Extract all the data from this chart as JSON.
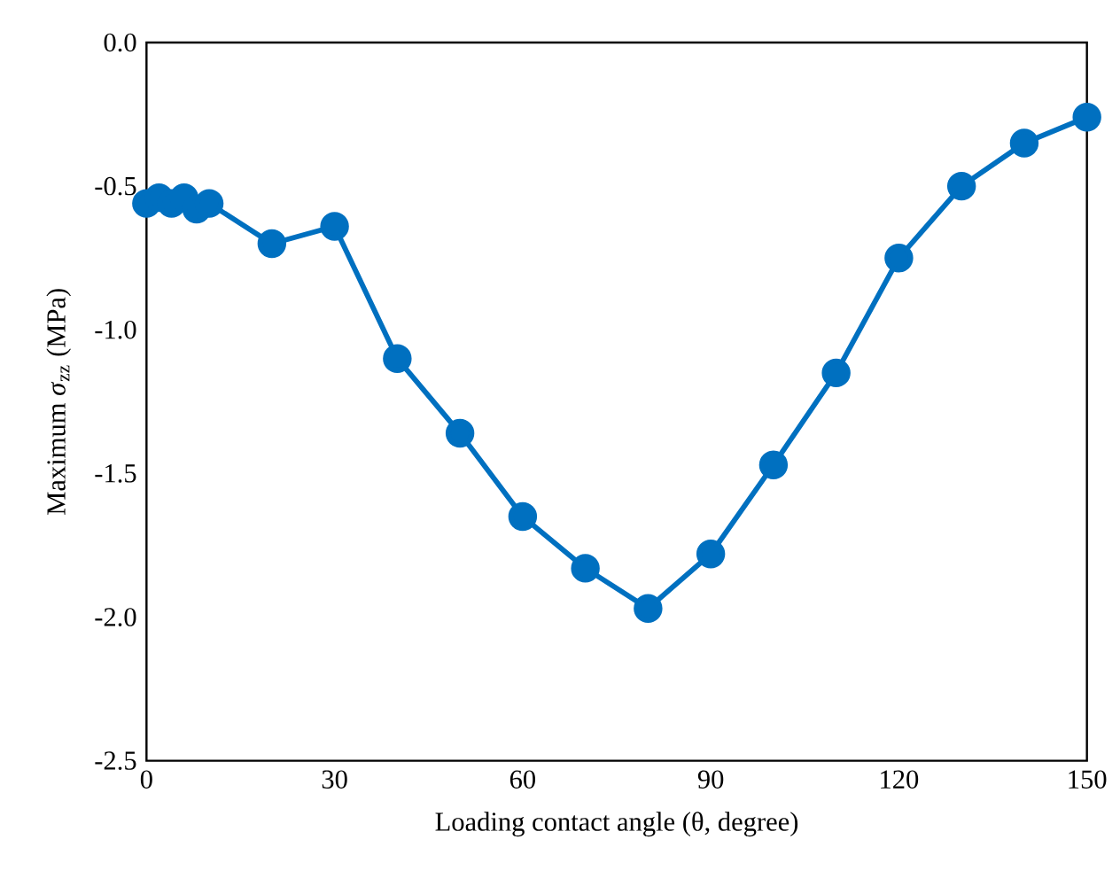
{
  "chart_data": {
    "type": "line",
    "xlabel": "Loading contact angle (θ, degree)",
    "ylabel": "Maximum *σ*$_{zz}$ (MPa)",
    "series": [
      {
        "color": "#0070c0",
        "x": [
          0,
          2,
          4,
          6,
          8,
          10,
          20,
          30,
          40,
          50,
          60,
          70,
          80,
          90,
          100,
          110,
          120,
          130,
          140,
          150
        ],
        "values": [
          -0.56,
          -0.54,
          -0.56,
          -0.54,
          -0.58,
          -0.56,
          -0.7,
          -0.64,
          -1.1,
          -1.36,
          -1.65,
          -1.83,
          -1.97,
          -1.78,
          -1.47,
          -1.15,
          -0.75,
          -0.5,
          -0.35,
          -0.26
        ]
      }
    ],
    "xlim": [
      0,
      150
    ],
    "xticks": [
      0,
      30,
      60,
      90,
      120,
      150
    ],
    "ylim": [
      -2.5,
      0
    ],
    "yticks": [
      {
        "value": -2.5,
        "label": "-2.5"
      },
      {
        "value": -2.0,
        "label": "-2.0"
      },
      {
        "value": -1.5,
        "label": "-1.5"
      },
      {
        "value": -1.0,
        "label": "-1.0"
      },
      {
        "value": -0.5,
        "label": "-0.5"
      },
      {
        "value": 0,
        "label": "0.0"
      }
    ],
    "marker": "circle",
    "line_style": "solid",
    "grid": false
  }
}
